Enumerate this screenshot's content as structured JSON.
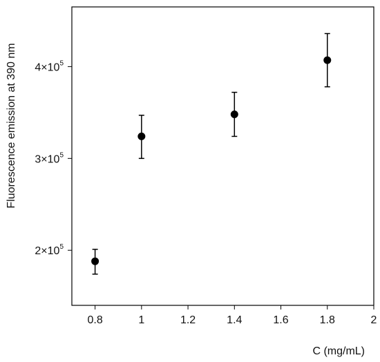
{
  "chart_data": {
    "type": "scatter",
    "title": "",
    "xlabel": "C (mg/mL)",
    "ylabel": "Fluorescence emission at 390 nm",
    "xlim": [
      0.7,
      2.0
    ],
    "ylim": [
      140000,
      465000
    ],
    "x_ticks": [
      {
        "value": 0.8,
        "label": "0.8"
      },
      {
        "value": 1.0,
        "label": "1"
      },
      {
        "value": 1.2,
        "label": "1.2"
      },
      {
        "value": 1.4,
        "label": "1.4"
      },
      {
        "value": 1.6,
        "label": "1.6"
      },
      {
        "value": 1.8,
        "label": "1.8"
      },
      {
        "value": 2.0,
        "label": "2"
      }
    ],
    "y_ticks": [
      {
        "value": 200000,
        "mantissa": "2×10",
        "exponent": "5"
      },
      {
        "value": 300000,
        "mantissa": "3×10",
        "exponent": "5"
      },
      {
        "value": 400000,
        "mantissa": "4×10",
        "exponent": "5"
      }
    ],
    "grid": false,
    "series": [
      {
        "points": [
          {
            "x": 0.8,
            "y": 188000,
            "err_low": 174000,
            "err_high": 201000
          },
          {
            "x": 1.0,
            "y": 324000,
            "err_low": 300000,
            "err_high": 347000
          },
          {
            "x": 1.4,
            "y": 348000,
            "err_low": 324000,
            "err_high": 372000
          },
          {
            "x": 1.8,
            "y": 407000,
            "err_low": 378000,
            "err_high": 436000
          }
        ],
        "marker_color": "#000000"
      }
    ]
  }
}
